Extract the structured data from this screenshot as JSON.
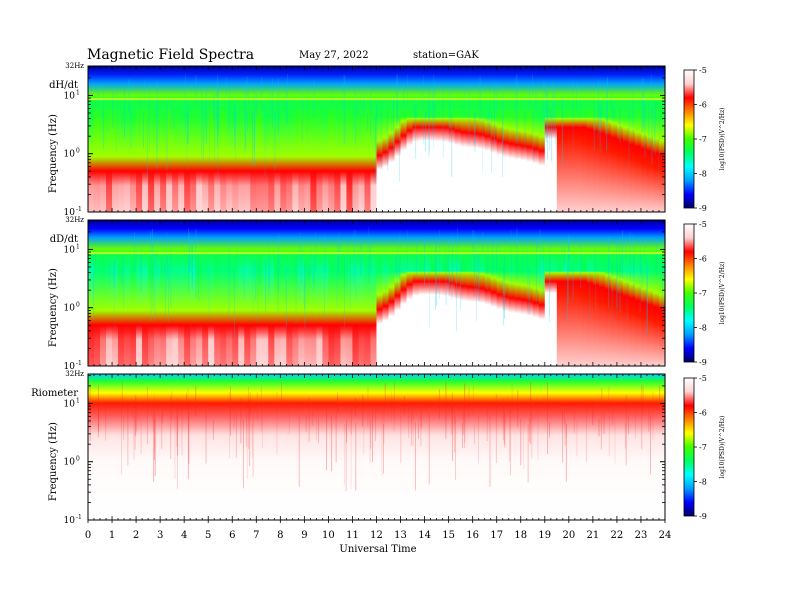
{
  "header": {
    "title": "Magnetic  Field  Spectra",
    "date": "May 27, 2022",
    "station": "station=GAK"
  },
  "chart_data": {
    "type": "heatmap",
    "x_label": "Universal Time",
    "x_ticks": [
      "0",
      "1",
      "2",
      "3",
      "4",
      "5",
      "6",
      "7",
      "8",
      "9",
      "10",
      "11",
      "12",
      "13",
      "14",
      "15",
      "16",
      "17",
      "18",
      "19",
      "20",
      "21",
      "22",
      "23",
      "24"
    ],
    "x_range": [
      0,
      24
    ],
    "colorbar": {
      "label": "log10(PSD)(V^2/Hz)",
      "ticks": [
        "-5",
        "-6",
        "-7",
        "-8",
        "-9"
      ],
      "range": [
        -9,
        -5
      ],
      "colors": [
        "#000066",
        "#0000ff",
        "#00a0ff",
        "#00ffff",
        "#00ff60",
        "#40ff00",
        "#ffff00",
        "#ff8000",
        "#ff0000",
        "#ffd0d0",
        "#ffffff"
      ]
    },
    "panels": [
      {
        "name": "dH/dt",
        "ylabel": "Frequency  (Hz)",
        "top_label": "32Hz",
        "y_ticks": [
          {
            "exp": "1",
            "value": 10
          },
          {
            "exp": "0",
            "value": 1
          },
          {
            "exp": "-1",
            "value": 0.1
          }
        ],
        "y_range": [
          0.1,
          32
        ],
        "y_scale": "log"
      },
      {
        "name": "dD/dt",
        "ylabel": "Frequency  (Hz)",
        "top_label": "32Hz",
        "y_ticks": [
          {
            "exp": "1",
            "value": 10
          },
          {
            "exp": "0",
            "value": 1
          },
          {
            "exp": "-1",
            "value": 0.1
          }
        ],
        "y_range": [
          0.1,
          32
        ],
        "y_scale": "log"
      },
      {
        "name": "Riometer",
        "ylabel": "Frequency  (Hz)",
        "top_label": "32Hz",
        "y_ticks": [
          {
            "exp": "1",
            "value": 10
          },
          {
            "exp": "0",
            "value": 1
          },
          {
            "exp": "-1",
            "value": 0.1
          }
        ],
        "y_range": [
          0.1,
          32
        ],
        "y_scale": "log"
      }
    ]
  }
}
